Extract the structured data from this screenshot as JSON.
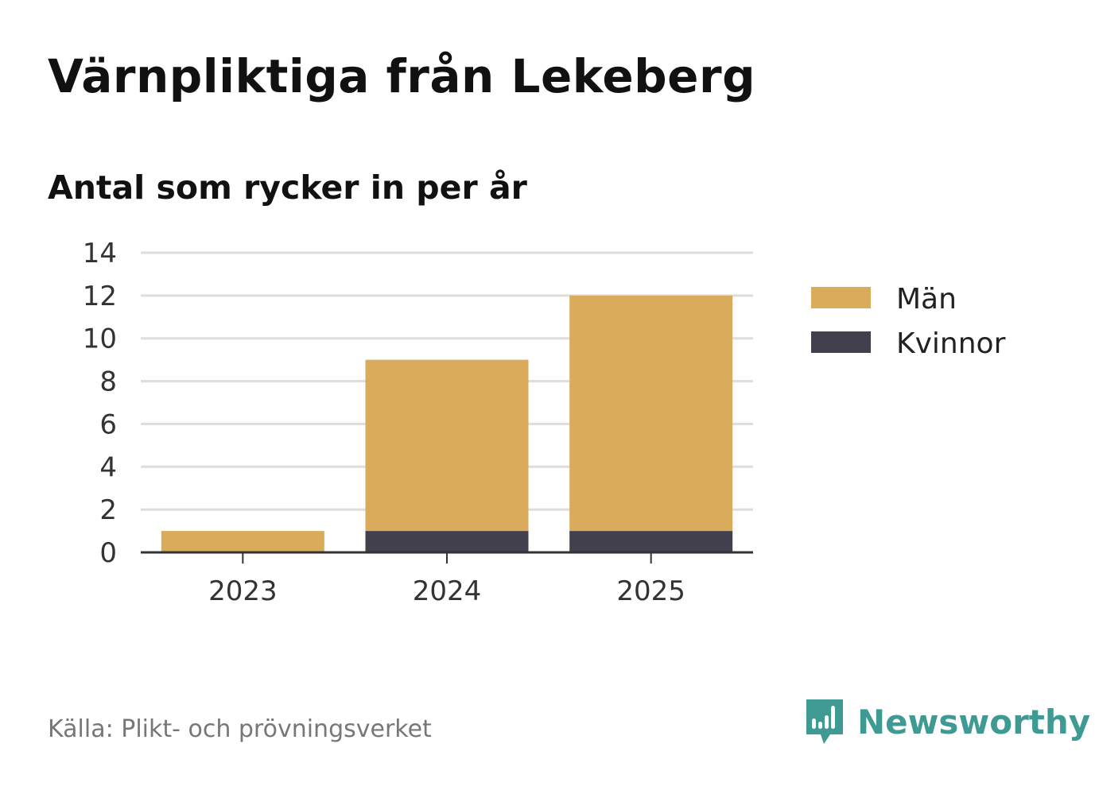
{
  "title": "Värnpliktiga från Lekeberg",
  "subtitle": "Antal som rycker in per år",
  "source": "Källa: Plikt- och prövningsverket",
  "brand": "Newsworthy",
  "colors": {
    "man": "#d9ab5a",
    "kvinnor": "#42404c",
    "brand": "#3f9a93",
    "grid": "#dddddd",
    "axis": "#333333"
  },
  "chart_data": {
    "type": "bar",
    "stacked": true,
    "title": "Värnpliktiga från Lekeberg",
    "subtitle": "Antal som rycker in per år",
    "categories": [
      "2023",
      "2024",
      "2025"
    ],
    "series": [
      {
        "name": "Kvinnor",
        "values": [
          0,
          1,
          1
        ]
      },
      {
        "name": "Män",
        "values": [
          1,
          8,
          11
        ]
      }
    ],
    "legend": [
      "Män",
      "Kvinnor"
    ],
    "legend_position": "right",
    "yticks": [
      0,
      2,
      4,
      6,
      8,
      10,
      12,
      14
    ],
    "ylim": [
      0,
      14
    ],
    "grid": true,
    "xlabel": "",
    "ylabel": ""
  }
}
